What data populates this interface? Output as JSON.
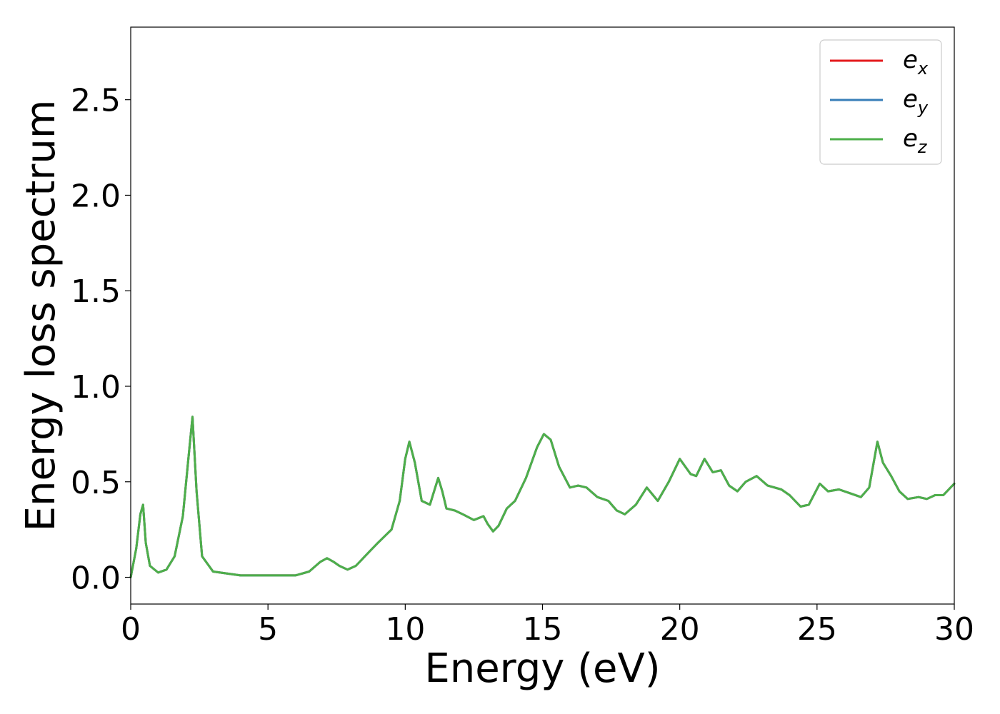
{
  "chart_data": {
    "type": "line",
    "title": "",
    "xlabel": "Energy (eV)",
    "ylabel": "Energy loss spectrum",
    "xlim": [
      0,
      30
    ],
    "ylim": [
      -0.14,
      2.88
    ],
    "xticks": [
      0,
      5,
      10,
      15,
      20,
      25,
      30
    ],
    "xtick_labels": [
      "0",
      "5",
      "10",
      "15",
      "20",
      "25",
      "30"
    ],
    "yticks": [
      0.0,
      0.5,
      1.0,
      1.5,
      2.0,
      2.5
    ],
    "ytick_labels": [
      "0.0",
      "0.5",
      "1.0",
      "1.5",
      "2.0",
      "2.5"
    ],
    "grid": false,
    "legend": {
      "placement": "top-right"
    },
    "series": [
      {
        "name": "e_x",
        "label_main": "e",
        "label_sub": "x",
        "color": "#e41a1c",
        "x": [
          0,
          0.2,
          0.35,
          0.45,
          0.55,
          0.7,
          1.0,
          1.3,
          1.6,
          1.9,
          2.1,
          2.25,
          2.4,
          2.6,
          3.0,
          4.0,
          5.0,
          6.0,
          6.5,
          6.9,
          7.15,
          7.4,
          7.6,
          7.9,
          8.2,
          8.6,
          9.0,
          9.5,
          9.8,
          10.0,
          10.15,
          10.35,
          10.6,
          10.9,
          11.05,
          11.2,
          11.35,
          11.5,
          11.8,
          12.1,
          12.5,
          12.85,
          13.0,
          13.2,
          13.4,
          13.7,
          14.0,
          14.4,
          14.8,
          15.05,
          15.3,
          15.6,
          16.0,
          16.3,
          16.6,
          17.0,
          17.4,
          17.7,
          18.0,
          18.4,
          18.8,
          19.2,
          19.6,
          20.0,
          20.4,
          20.6,
          20.9,
          21.2,
          21.5,
          21.8,
          22.1,
          22.4,
          22.8,
          23.2,
          23.7,
          24.0,
          24.4,
          24.7,
          25.1,
          25.4,
          25.8,
          26.2,
          26.6,
          26.9,
          27.2,
          27.4,
          27.7,
          28.0,
          28.3,
          28.7,
          29.0,
          29.3,
          29.6,
          30.0
        ],
        "y": [
          0.0,
          0.15,
          0.33,
          0.38,
          0.18,
          0.06,
          0.025,
          0.04,
          0.11,
          0.32,
          0.62,
          0.84,
          0.45,
          0.11,
          0.03,
          0.01,
          0.01,
          0.01,
          0.03,
          0.08,
          0.1,
          0.08,
          0.06,
          0.04,
          0.06,
          0.12,
          0.18,
          0.25,
          0.4,
          0.62,
          0.71,
          0.6,
          0.4,
          0.38,
          0.45,
          0.52,
          0.45,
          0.36,
          0.35,
          0.33,
          0.3,
          0.32,
          0.28,
          0.24,
          0.27,
          0.36,
          0.4,
          0.52,
          0.68,
          0.75,
          0.72,
          0.58,
          0.47,
          0.48,
          0.47,
          0.42,
          0.4,
          0.35,
          0.33,
          0.38,
          0.47,
          0.4,
          0.5,
          0.62,
          0.54,
          0.53,
          0.62,
          0.55,
          0.56,
          0.48,
          0.45,
          0.5,
          0.53,
          0.48,
          0.46,
          0.43,
          0.37,
          0.38,
          0.49,
          0.45,
          0.46,
          0.44,
          0.42,
          0.47,
          0.71,
          0.6,
          0.53,
          0.45,
          0.41,
          0.42,
          0.41,
          0.43,
          0.43,
          0.49
        ]
      },
      {
        "name": "e_y",
        "label_main": "e",
        "label_sub": "y",
        "color": "#377eb8",
        "x": [
          0,
          0.2,
          0.35,
          0.45,
          0.55,
          0.7,
          1.0,
          1.3,
          1.6,
          1.9,
          2.1,
          2.25,
          2.4,
          2.6,
          3.0,
          4.0,
          5.0,
          6.0,
          6.5,
          6.9,
          7.15,
          7.4,
          7.6,
          7.9,
          8.2,
          8.6,
          9.0,
          9.5,
          9.8,
          10.0,
          10.15,
          10.35,
          10.6,
          10.9,
          11.05,
          11.2,
          11.35,
          11.5,
          11.8,
          12.1,
          12.5,
          12.85,
          13.0,
          13.2,
          13.4,
          13.7,
          14.0,
          14.4,
          14.8,
          15.05,
          15.3,
          15.6,
          16.0,
          16.3,
          16.6,
          17.0,
          17.4,
          17.7,
          18.0,
          18.4,
          18.8,
          19.2,
          19.6,
          20.0,
          20.4,
          20.6,
          20.9,
          21.2,
          21.5,
          21.8,
          22.1,
          22.4,
          22.8,
          23.2,
          23.7,
          24.0,
          24.4,
          24.7,
          25.1,
          25.4,
          25.8,
          26.2,
          26.6,
          26.9,
          27.2,
          27.4,
          27.7,
          28.0,
          28.3,
          28.7,
          29.0,
          29.3,
          29.6,
          30.0
        ],
        "y": [
          0.0,
          0.15,
          0.33,
          0.38,
          0.18,
          0.06,
          0.025,
          0.04,
          0.11,
          0.32,
          0.62,
          0.84,
          0.45,
          0.11,
          0.03,
          0.01,
          0.01,
          0.01,
          0.03,
          0.08,
          0.1,
          0.08,
          0.06,
          0.04,
          0.06,
          0.12,
          0.18,
          0.25,
          0.4,
          0.62,
          0.71,
          0.6,
          0.4,
          0.38,
          0.45,
          0.52,
          0.45,
          0.36,
          0.35,
          0.33,
          0.3,
          0.32,
          0.28,
          0.24,
          0.27,
          0.36,
          0.4,
          0.52,
          0.68,
          0.75,
          0.72,
          0.58,
          0.47,
          0.48,
          0.47,
          0.42,
          0.4,
          0.35,
          0.33,
          0.38,
          0.47,
          0.4,
          0.5,
          0.62,
          0.54,
          0.53,
          0.62,
          0.55,
          0.56,
          0.48,
          0.45,
          0.5,
          0.53,
          0.48,
          0.46,
          0.43,
          0.37,
          0.38,
          0.49,
          0.45,
          0.46,
          0.44,
          0.42,
          0.47,
          0.71,
          0.6,
          0.53,
          0.45,
          0.41,
          0.42,
          0.41,
          0.43,
          0.43,
          0.49
        ]
      },
      {
        "name": "e_z",
        "label_main": "e",
        "label_sub": "z",
        "color": "#4daf4a",
        "x": [
          0,
          0.2,
          0.35,
          0.45,
          0.55,
          0.7,
          1.0,
          1.3,
          1.6,
          1.9,
          2.1,
          2.25,
          2.4,
          2.6,
          3.0,
          4.0,
          5.0,
          6.0,
          6.5,
          6.9,
          7.15,
          7.4,
          7.6,
          7.9,
          8.2,
          8.6,
          9.0,
          9.5,
          9.8,
          10.0,
          10.15,
          10.35,
          10.6,
          10.9,
          11.05,
          11.2,
          11.35,
          11.5,
          11.8,
          12.1,
          12.5,
          12.85,
          13.0,
          13.2,
          13.4,
          13.7,
          14.0,
          14.4,
          14.8,
          15.05,
          15.3,
          15.6,
          16.0,
          16.3,
          16.6,
          17.0,
          17.4,
          17.7,
          18.0,
          18.4,
          18.8,
          19.2,
          19.6,
          20.0,
          20.4,
          20.6,
          20.9,
          21.2,
          21.5,
          21.8,
          22.1,
          22.4,
          22.8,
          23.2,
          23.7,
          24.0,
          24.4,
          24.7,
          25.1,
          25.4,
          25.8,
          26.2,
          26.6,
          26.9,
          27.2,
          27.4,
          27.7,
          28.0,
          28.3,
          28.7,
          29.0,
          29.3,
          29.6,
          30.0
        ],
        "y": [
          0.0,
          0.15,
          0.33,
          0.38,
          0.18,
          0.06,
          0.025,
          0.04,
          0.11,
          0.32,
          0.62,
          0.84,
          0.45,
          0.11,
          0.03,
          0.01,
          0.01,
          0.01,
          0.03,
          0.08,
          0.1,
          0.08,
          0.06,
          0.04,
          0.06,
          0.12,
          0.18,
          0.25,
          0.4,
          0.62,
          0.71,
          0.6,
          0.4,
          0.38,
          0.45,
          0.52,
          0.45,
          0.36,
          0.35,
          0.33,
          0.3,
          0.32,
          0.28,
          0.24,
          0.27,
          0.36,
          0.4,
          0.52,
          0.68,
          0.75,
          0.72,
          0.58,
          0.47,
          0.48,
          0.47,
          0.42,
          0.4,
          0.35,
          0.33,
          0.38,
          0.47,
          0.4,
          0.5,
          0.62,
          0.54,
          0.53,
          0.62,
          0.55,
          0.56,
          0.48,
          0.45,
          0.5,
          0.53,
          0.48,
          0.46,
          0.43,
          0.37,
          0.38,
          0.49,
          0.45,
          0.46,
          0.44,
          0.42,
          0.47,
          0.71,
          0.6,
          0.53,
          0.45,
          0.41,
          0.42,
          0.41,
          0.43,
          0.43,
          0.49
        ]
      }
    ]
  }
}
